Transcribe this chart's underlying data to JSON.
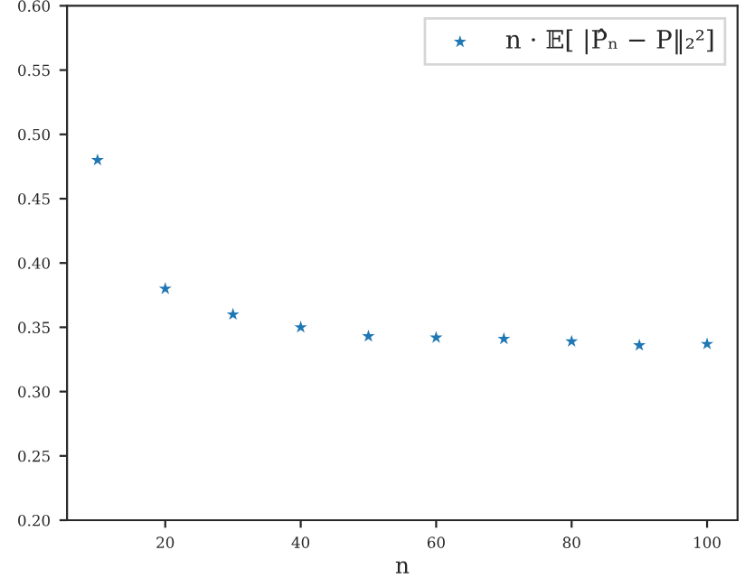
{
  "chart_data": {
    "type": "scatter",
    "xlabel": "n",
    "x": [
      10,
      20,
      30,
      40,
      50,
      60,
      70,
      80,
      90,
      100
    ],
    "series": [
      {
        "name": "n · 𝔼[ |P̂ₙ − P‖₂²]",
        "color": "#1f77b4",
        "values": [
          0.48,
          0.38,
          0.36,
          0.35,
          0.343,
          0.342,
          0.341,
          0.339,
          0.336,
          0.337
        ]
      }
    ],
    "marker": "star",
    "legend": "top right",
    "grid": false,
    "xlim": [
      5.5,
      104.5
    ],
    "xticks": [
      20,
      40,
      60,
      80,
      100
    ],
    "ylim": [
      0.2,
      0.6
    ],
    "yticks": [
      {
        "value": 0.2,
        "label": "0.20"
      },
      {
        "value": 0.25,
        "label": "0.25"
      },
      {
        "value": 0.3,
        "label": "0.30"
      },
      {
        "value": 0.35,
        "label": "0.35"
      },
      {
        "value": 0.4,
        "label": "0.40"
      },
      {
        "value": 0.45,
        "label": "0.45"
      },
      {
        "value": 0.5,
        "label": "0.50"
      },
      {
        "value": 0.55,
        "label": "0.55"
      },
      {
        "value": 0.6,
        "label": "0.60"
      }
    ]
  }
}
